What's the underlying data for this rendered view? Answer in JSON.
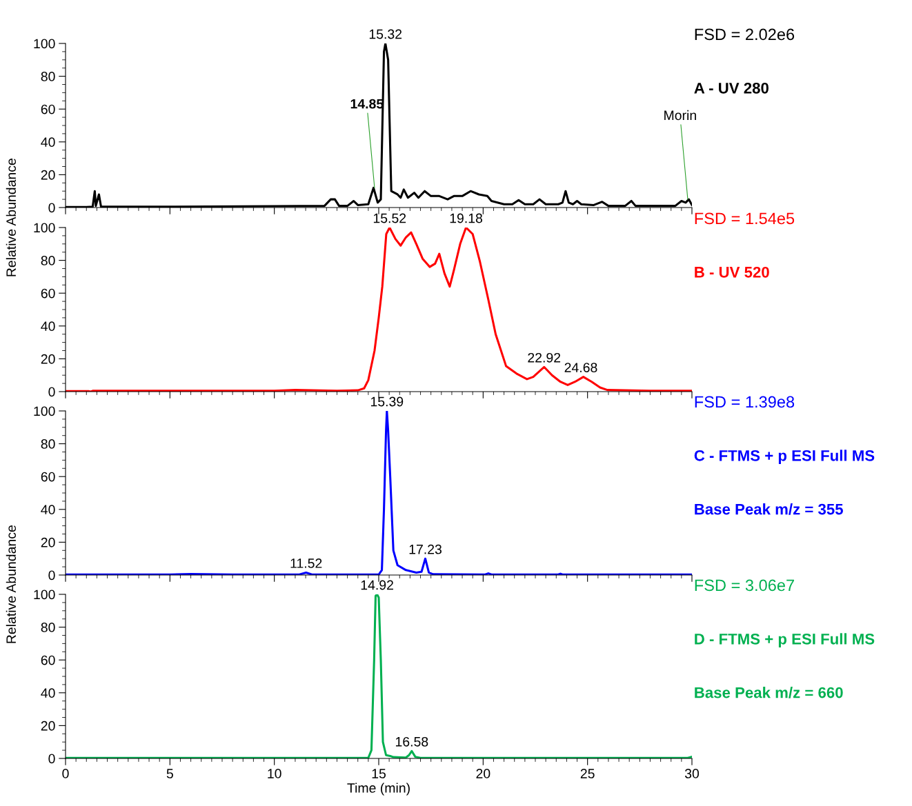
{
  "chart_data": [
    {
      "type": "line",
      "xlim": [
        0,
        30
      ],
      "xticks": [
        0,
        5,
        10,
        15,
        20,
        25,
        30
      ],
      "ylim": [
        0,
        100
      ],
      "yticks": [
        0,
        20,
        40,
        60,
        80,
        100
      ],
      "tick_labels": "y",
      "grid": false,
      "legend": false,
      "marker": "none",
      "line_style": "solid",
      "series": [
        {
          "color": "#000000",
          "x": [
            0,
            1.0,
            1.3,
            1.4,
            1.45,
            1.6,
            1.7,
            5,
            10,
            12.4,
            12.7,
            12.9,
            13.1,
            13.5,
            13.8,
            14.0,
            14.5,
            14.75,
            14.95,
            15.1,
            15.25,
            15.32,
            15.45,
            15.6,
            15.9,
            16.05,
            16.2,
            16.4,
            16.7,
            16.9,
            17.2,
            17.5,
            17.9,
            18.3,
            18.6,
            19.0,
            19.4,
            19.8,
            20.2,
            20.4,
            21.0,
            21.4,
            21.7,
            22.0,
            22.4,
            22.7,
            23.0,
            23.6,
            23.8,
            23.95,
            24.1,
            24.3,
            24.5,
            24.7,
            25.3,
            25.7,
            26.0,
            26.8,
            27.1,
            27.3,
            28.0,
            29.2,
            29.5,
            29.7,
            29.85,
            30.0
          ],
          "values": [
            0.3,
            0.3,
            0.5,
            10,
            1,
            8,
            0.5,
            0.5,
            0.8,
            1,
            5,
            5,
            1,
            1,
            4,
            1.5,
            2,
            12,
            3,
            5,
            95,
            100,
            90,
            10,
            8,
            6,
            11,
            6,
            9,
            6,
            10,
            7,
            7,
            5,
            7,
            7,
            10,
            8,
            7,
            4,
            2,
            2,
            4.5,
            2,
            2,
            5,
            2,
            2,
            3,
            10,
            3,
            2,
            4,
            2,
            1.5,
            3.5,
            1,
            1,
            4,
            1,
            1,
            1,
            4,
            3,
            5,
            1.5
          ]
        }
      ],
      "annotations": [
        "FSD = 2.02e6",
        "A - UV 280",
        {
          "text": "15.32",
          "x": 15.32,
          "y": 100
        },
        {
          "text": "14.85",
          "x": 14.8,
          "y": 12
        },
        {
          "text": "Morin",
          "x": 29.8,
          "y": 5
        }
      ]
    },
    {
      "type": "line",
      "xlim": [
        0,
        30
      ],
      "xticks": [
        0,
        5,
        10,
        15,
        20,
        25,
        30
      ],
      "ylim": [
        0,
        100
      ],
      "yticks": [
        0,
        20,
        40,
        60,
        80,
        100
      ],
      "tick_labels": "y",
      "grid": false,
      "legend": false,
      "marker": "none",
      "line_style": "solid",
      "ylabel": "Relative Abundance",
      "series": [
        {
          "color": "#ff0000",
          "x": [
            0,
            1.1,
            1.2,
            1.3,
            5,
            10,
            11,
            13,
            14,
            14.3,
            14.5,
            14.8,
            15.0,
            15.17,
            15.36,
            15.52,
            15.8,
            16.05,
            16.3,
            16.55,
            16.8,
            17.1,
            17.44,
            17.7,
            17.9,
            18.15,
            18.4,
            18.6,
            18.9,
            19.18,
            19.5,
            19.85,
            20.25,
            20.6,
            21.1,
            21.6,
            22.1,
            22.4,
            22.92,
            23.3,
            23.7,
            24.05,
            24.4,
            24.8,
            25.2,
            25.6,
            25.95,
            28,
            30
          ],
          "values": [
            0.3,
            0.3,
            0,
            0.5,
            0.5,
            0.5,
            1,
            0.5,
            0.8,
            2,
            7,
            25,
            45,
            64,
            96,
            100,
            93,
            89,
            94,
            97,
            90,
            81,
            76,
            78,
            84,
            72,
            64,
            74,
            90,
            100,
            96,
            79,
            56,
            35,
            15.5,
            11,
            7.6,
            9,
            15,
            10,
            6,
            4,
            6,
            9,
            6,
            2.5,
            1,
            0.5,
            0.5
          ]
        }
      ],
      "annotations": [
        "FSD = 1.54e5",
        "B - UV 520",
        {
          "text": "15.52",
          "x": 15.52,
          "y": 100
        },
        {
          "text": "19.18",
          "x": 19.18,
          "y": 100
        },
        {
          "text": "22.92",
          "x": 22.92,
          "y": 15
        },
        {
          "text": "24.68",
          "x": 24.68,
          "y": 9
        }
      ]
    },
    {
      "type": "line",
      "xlim": [
        0,
        30
      ],
      "xticks": [
        0,
        5,
        10,
        15,
        20,
        25,
        30
      ],
      "ylim": [
        0,
        100
      ],
      "yticks": [
        0,
        20,
        40,
        60,
        80,
        100
      ],
      "tick_labels": "y",
      "grid": false,
      "legend": false,
      "marker": "none",
      "line_style": "solid",
      "series": [
        {
          "color": "#0000ff",
          "x": [
            0,
            5,
            6,
            8,
            11.2,
            11.52,
            11.8,
            15.0,
            15.15,
            15.25,
            15.35,
            15.39,
            15.45,
            15.55,
            15.7,
            15.9,
            16.3,
            16.8,
            17.05,
            17.23,
            17.4,
            17.6,
            20.1,
            20.25,
            20.4,
            23.6,
            23.7,
            23.8,
            30
          ],
          "values": [
            0.3,
            0.3,
            0.6,
            0.3,
            0.3,
            1.5,
            0.3,
            0.3,
            3,
            40,
            88,
            100,
            88,
            60,
            15,
            6,
            3,
            1.5,
            2,
            10,
            1.5,
            0.5,
            0.3,
            1,
            0.3,
            0.3,
            0.8,
            0.3,
            0.3
          ]
        }
      ],
      "annotations": [
        "FSD = 1.39e8",
        "C - FTMS + p ESI Full MS",
        "Base Peak m/z = 355",
        {
          "text": "15.39",
          "x": 15.39,
          "y": 100
        },
        {
          "text": "11.52",
          "x": 11.52,
          "y": 1.5
        },
        {
          "text": "17.23",
          "x": 17.23,
          "y": 10
        }
      ]
    },
    {
      "type": "line",
      "xlim": [
        0,
        30
      ],
      "xticks": [
        0,
        5,
        10,
        15,
        20,
        25,
        30
      ],
      "ylim": [
        0,
        100
      ],
      "yticks": [
        0,
        20,
        40,
        60,
        80,
        100
      ],
      "grid": false,
      "legend": false,
      "marker": "none",
      "line_style": "solid",
      "ylabel": "Relative Abundance",
      "xlabel": "Time (min)",
      "series": [
        {
          "color": "#00b050",
          "x": [
            0,
            14.5,
            14.65,
            14.78,
            14.85,
            14.92,
            15.0,
            15.1,
            15.2,
            15.35,
            15.55,
            15.7,
            16.3,
            16.45,
            16.58,
            16.75,
            17,
            29.8,
            30
          ],
          "values": [
            0.3,
            0.3,
            5,
            60,
            99,
            100,
            98,
            60,
            10,
            2,
            1.5,
            0.8,
            0.5,
            2,
            4.5,
            1,
            0.3,
            0.3,
            1
          ]
        }
      ],
      "annotations": [
        "FSD = 3.06e7",
        "D - FTMS + p ESI Full MS",
        "Base Peak m/z = 660",
        {
          "text": "14.92",
          "x": 14.92,
          "y": 100
        },
        {
          "text": "16.58",
          "x": 16.58,
          "y": 4.5
        }
      ]
    }
  ]
}
